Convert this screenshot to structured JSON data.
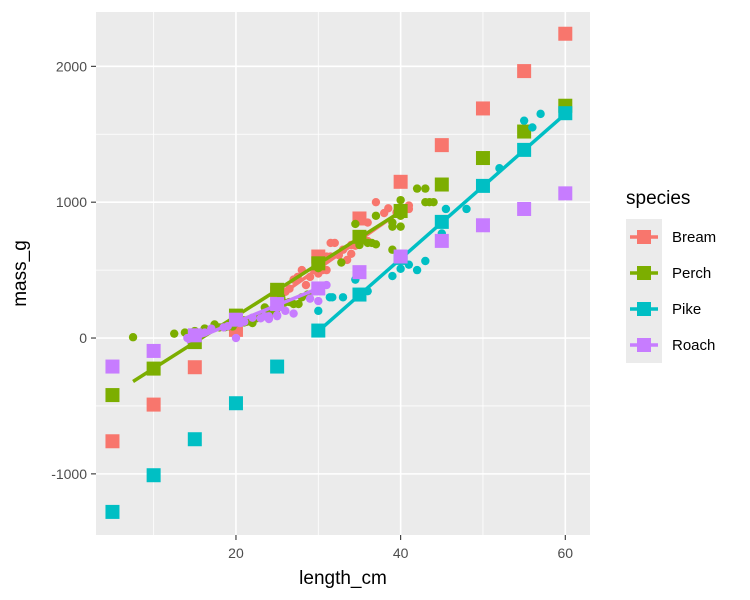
{
  "chart_data": {
    "type": "scatter",
    "xlabel": "length_cm",
    "ylabel": "mass_g",
    "xlim": [
      3,
      63
    ],
    "ylim": [
      -1450,
      2400
    ],
    "x_ticks": [
      20,
      40,
      60
    ],
    "y_ticks": [
      -1000,
      0,
      1000,
      2000
    ],
    "x_tick_labels": [
      "20",
      "40",
      "60"
    ],
    "y_tick_labels": [
      "-1000",
      "0",
      "1000",
      "2000"
    ],
    "grid": true,
    "legend": {
      "title": "species",
      "position": "right",
      "entries": [
        {
          "label": "Bream",
          "color": "#F8766D"
        },
        {
          "label": "Perch",
          "color": "#7CAE00"
        },
        {
          "label": "Pike",
          "color": "#00BFC4"
        },
        {
          "label": "Roach",
          "color": "#C77CFF"
        }
      ]
    },
    "series": [
      {
        "name": "Bream",
        "color": "#F8766D",
        "observed": [
          [
            25,
            290
          ],
          [
            26,
            340
          ],
          [
            26.5,
            363
          ],
          [
            27,
            430
          ],
          [
            27.5,
            450
          ],
          [
            28,
            500
          ],
          [
            28.5,
            390
          ],
          [
            29,
            450
          ],
          [
            29.5,
            500
          ],
          [
            30,
            475
          ],
          [
            30.5,
            500
          ],
          [
            31,
            500
          ],
          [
            31,
            600
          ],
          [
            31.5,
            600
          ],
          [
            31.5,
            700
          ],
          [
            32,
            700
          ],
          [
            32.5,
            610
          ],
          [
            33,
            650
          ],
          [
            33.5,
            575
          ],
          [
            34,
            685
          ],
          [
            34,
            620
          ],
          [
            34.5,
            680
          ],
          [
            35,
            700
          ],
          [
            35,
            725
          ],
          [
            35.5,
            720
          ],
          [
            36,
            714
          ],
          [
            36,
            850
          ],
          [
            37,
            1000
          ],
          [
            38,
            920
          ],
          [
            38.5,
            955
          ],
          [
            39.5,
            925
          ],
          [
            41,
            975
          ],
          [
            41,
            950
          ]
        ],
        "fit": [
          [
            25,
            300
          ],
          [
            41,
            975
          ]
        ],
        "predicted": [
          [
            5,
            -760
          ],
          [
            10,
            -490
          ],
          [
            15,
            -215
          ],
          [
            20,
            60
          ],
          [
            25,
            330
          ],
          [
            30,
            600
          ],
          [
            35,
            880
          ],
          [
            40,
            1150
          ],
          [
            45,
            1420
          ],
          [
            50,
            1690
          ],
          [
            55,
            1965
          ],
          [
            60,
            2240
          ]
        ]
      },
      {
        "name": "Perch",
        "color": "#7CAE00",
        "observed": [
          [
            7.5,
            5.9
          ],
          [
            12.5,
            32
          ],
          [
            13.8,
            40
          ],
          [
            15,
            51.5
          ],
          [
            16.2,
            70
          ],
          [
            17.4,
            100
          ],
          [
            18,
            78
          ],
          [
            18.7,
            80
          ],
          [
            19,
            85
          ],
          [
            19.6,
            85
          ],
          [
            20,
            110
          ],
          [
            21,
            115
          ],
          [
            21,
            125
          ],
          [
            21,
            130
          ],
          [
            21.3,
            120
          ],
          [
            22,
            120
          ],
          [
            22,
            130
          ],
          [
            22,
            135
          ],
          [
            22,
            110
          ],
          [
            22,
            130
          ],
          [
            22.5,
            150
          ],
          [
            22.5,
            145
          ],
          [
            22.7,
            150
          ],
          [
            23,
            170
          ],
          [
            23.5,
            225
          ],
          [
            24,
            145
          ],
          [
            24,
            188
          ],
          [
            24.2,
            180
          ],
          [
            24.5,
            197
          ],
          [
            25,
            218
          ],
          [
            25.5,
            300
          ],
          [
            25.9,
            260
          ],
          [
            26.5,
            265
          ],
          [
            27,
            250
          ],
          [
            27.6,
            250
          ],
          [
            28,
            300
          ],
          [
            28.7,
            320
          ],
          [
            30,
            514
          ],
          [
            32.8,
            556
          ],
          [
            34.5,
            840
          ],
          [
            35,
            685
          ],
          [
            36.5,
            700
          ],
          [
            36,
            700
          ],
          [
            37,
            690
          ],
          [
            37,
            900
          ],
          [
            39,
            650
          ],
          [
            39,
            820
          ],
          [
            39,
            850
          ],
          [
            40,
            900
          ],
          [
            40,
            1015
          ],
          [
            40,
            820
          ],
          [
            42,
            1100
          ],
          [
            43,
            1000
          ],
          [
            43,
            1100
          ],
          [
            43.5,
            1000
          ],
          [
            44,
            1000
          ]
        ],
        "fit": [
          [
            7.5,
            -320
          ],
          [
            40,
            930
          ]
        ],
        "predicted": [
          [
            5,
            -420
          ],
          [
            10,
            -225
          ],
          [
            15,
            -30
          ],
          [
            20,
            165
          ],
          [
            25,
            355
          ],
          [
            30,
            550
          ],
          [
            35,
            745
          ],
          [
            40,
            935
          ],
          [
            45,
            1130
          ],
          [
            50,
            1325
          ],
          [
            55,
            1520
          ],
          [
            60,
            1710
          ]
        ]
      },
      {
        "name": "Pike",
        "color": "#00BFC4",
        "observed": [
          [
            30,
            200
          ],
          [
            31.4,
            300
          ],
          [
            31.7,
            300
          ],
          [
            33,
            300
          ],
          [
            34.5,
            430
          ],
          [
            36,
            345
          ],
          [
            39,
            456
          ],
          [
            40,
            510
          ],
          [
            41,
            540
          ],
          [
            42,
            500
          ],
          [
            43,
            567
          ],
          [
            45,
            770
          ],
          [
            45.5,
            950
          ],
          [
            48,
            950
          ],
          [
            52,
            1250
          ],
          [
            55,
            1600
          ],
          [
            56,
            1550
          ],
          [
            57,
            1650
          ],
          [
            60,
            1650
          ]
        ],
        "fit": [
          [
            30,
            50
          ],
          [
            60,
            1650
          ]
        ],
        "predicted": [
          [
            5,
            -1280
          ],
          [
            10,
            -1010
          ],
          [
            15,
            -745
          ],
          [
            20,
            -480
          ],
          [
            25,
            -210
          ],
          [
            30,
            55
          ],
          [
            35,
            320
          ],
          [
            40,
            590
          ],
          [
            45,
            855
          ],
          [
            50,
            1120
          ],
          [
            55,
            1385
          ],
          [
            60,
            1655
          ]
        ]
      },
      {
        "name": "Roach",
        "color": "#C77CFF",
        "observed": [
          [
            14.1,
            0
          ],
          [
            16.2,
            40
          ],
          [
            17,
            69
          ],
          [
            18.5,
            78
          ],
          [
            19,
            87
          ],
          [
            19.8,
            120
          ],
          [
            20,
            0
          ],
          [
            20.5,
            110
          ],
          [
            21,
            120
          ],
          [
            22,
            150
          ],
          [
            23,
            145
          ],
          [
            23.5,
            160
          ],
          [
            24,
            140
          ],
          [
            24,
            160
          ],
          [
            25,
            169
          ],
          [
            25,
            161
          ],
          [
            26,
            200
          ],
          [
            27,
            180
          ],
          [
            29,
            290
          ],
          [
            30,
            272
          ],
          [
            31,
            390
          ]
        ],
        "fit": [
          [
            14,
            -30
          ],
          [
            31,
            390
          ]
        ],
        "predicted": [
          [
            5,
            -210
          ],
          [
            10,
            -95
          ],
          [
            15,
            20
          ],
          [
            20,
            135
          ],
          [
            25,
            250
          ],
          [
            30,
            365
          ],
          [
            35,
            485
          ],
          [
            40,
            600
          ],
          [
            45,
            715
          ],
          [
            50,
            830
          ],
          [
            55,
            950
          ],
          [
            60,
            1065
          ]
        ]
      }
    ]
  }
}
